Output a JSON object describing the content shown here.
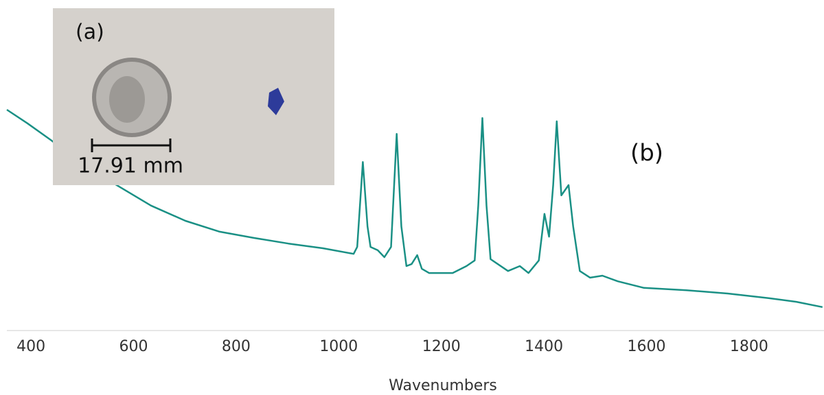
{
  "chart_data": {
    "type": "line",
    "x_label": "Wavenumbers",
    "annotations": [
      "(a)",
      "17.91 mm",
      "(b)"
    ],
    "x": [
      353,
      393,
      440,
      500,
      567,
      634,
      701,
      768,
      835,
      902,
      969,
      1029,
      1036,
      1047,
      1056,
      1062,
      1076,
      1089,
      1102,
      1113,
      1122,
      1132,
      1142,
      1153,
      1162,
      1176,
      1222,
      1249,
      1265,
      1272,
      1280,
      1288,
      1296,
      1330,
      1353,
      1370,
      1390,
      1401,
      1410,
      1418,
      1425,
      1434,
      1448,
      1457,
      1470,
      1490,
      1514,
      1544,
      1595,
      1678,
      1758,
      1838,
      1892,
      1943
    ],
    "series": [
      {
        "color": "#1a9085",
        "values": [
          66.8,
          62.7,
          57.5,
          50.2,
          44,
          37.8,
          33.2,
          29.9,
          28,
          26.3,
          24.9,
          23.2,
          25.3,
          51,
          31.5,
          25.3,
          24.3,
          22.2,
          25.3,
          59.5,
          31.5,
          19.5,
          20.1,
          22.8,
          18.7,
          17.4,
          17.4,
          19.5,
          21.2,
          37.8,
          64.3,
          37.8,
          21.6,
          18,
          19.5,
          17.4,
          21.2,
          35.3,
          28.4,
          44,
          63.3,
          40.9,
          44,
          31.5,
          18,
          16,
          16.6,
          14.9,
          12.9,
          12.2,
          11.2,
          9.8,
          8.7,
          7.1
        ]
      }
    ],
    "xlim": [
      353,
      1946
    ],
    "xticks": [
      400,
      600,
      800,
      1000,
      1200,
      1400,
      1600,
      1800
    ],
    "ylim": [
      0,
      100
    ],
    "grid": false
  }
}
